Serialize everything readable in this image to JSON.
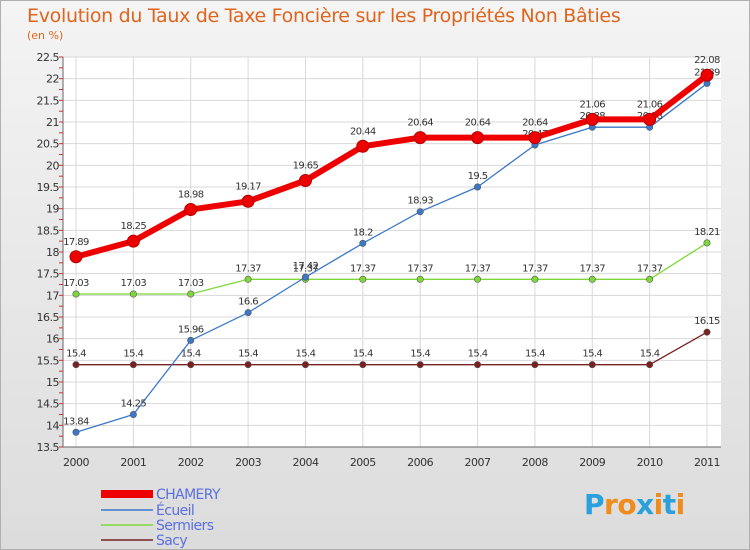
{
  "chart_data": {
    "type": "line",
    "title": "Evolution du Taux de Taxe Foncière sur les Propriétés Non Bâties",
    "ylabel": "(en %)",
    "xlabel": "",
    "x": [
      "2000",
      "2001",
      "2002",
      "2003",
      "2004",
      "2005",
      "2006",
      "2007",
      "2008",
      "2009",
      "2010",
      "2011"
    ],
    "ylim": [
      13.5,
      22.5
    ],
    "yticks": [
      13.5,
      14,
      14.5,
      15,
      15.5,
      16,
      16.5,
      17,
      17.5,
      18,
      18.5,
      19,
      19.5,
      20,
      20.5,
      21,
      21.5,
      22,
      22.5
    ],
    "series": [
      {
        "name": "CHAMERY",
        "color": "#ee0000",
        "values": [
          17.89,
          18.25,
          18.98,
          19.17,
          19.65,
          20.44,
          20.64,
          20.64,
          20.64,
          21.06,
          21.06,
          22.08
        ],
        "labels": [
          "17.89",
          "18.25",
          "18.98",
          "19.17",
          "19.65",
          "20.44",
          "20.64",
          "20.64",
          "20.64",
          "21.06",
          "21.06",
          "22.08"
        ]
      },
      {
        "name": "Écueil",
        "color": "#3b78c8",
        "values": [
          13.84,
          14.25,
          15.96,
          16.6,
          17.42,
          18.2,
          18.93,
          19.5,
          20.47,
          20.88,
          20.88,
          21.89
        ],
        "labels": [
          "13.84",
          "14.25",
          "15.96",
          "16.6",
          "17.42",
          "18.2",
          "18.93",
          "19.5",
          "20.47",
          "20.88",
          "20.88",
          "21.89"
        ]
      },
      {
        "name": "Sermiers",
        "color": "#7ed83a",
        "values": [
          17.03,
          17.03,
          17.03,
          17.37,
          17.37,
          17.37,
          17.37,
          17.37,
          17.37,
          17.37,
          17.37,
          18.21
        ],
        "labels": [
          "17.03",
          "17.03",
          "17.03",
          "17.37",
          "17.37",
          "17.37",
          "17.37",
          "17.37",
          "17.37",
          "17.37",
          "17.37",
          "18.21"
        ]
      },
      {
        "name": "Sacy",
        "color": "#7a2020",
        "values": [
          15.4,
          15.4,
          15.4,
          15.4,
          15.4,
          15.4,
          15.4,
          15.4,
          15.4,
          15.4,
          15.4,
          16.15
        ],
        "labels": [
          "15.4",
          "15.4",
          "15.4",
          "15.4",
          "15.4",
          "15.4",
          "15.4",
          "15.4",
          "15.4",
          "15.4",
          "15.4",
          "16.15"
        ]
      }
    ],
    "legend": [
      "CHAMERY",
      "Écueil",
      "Sermiers",
      "Sacy"
    ]
  },
  "logo": {
    "letters": [
      "P",
      "r",
      "o",
      "x",
      "i",
      "t",
      "i"
    ],
    "colors": [
      "#2aa0dc",
      "#f08c1e",
      "#f08c1e",
      "#2aa0dc",
      "#f08c1e",
      "#2aa0dc",
      "#f08c1e"
    ]
  }
}
